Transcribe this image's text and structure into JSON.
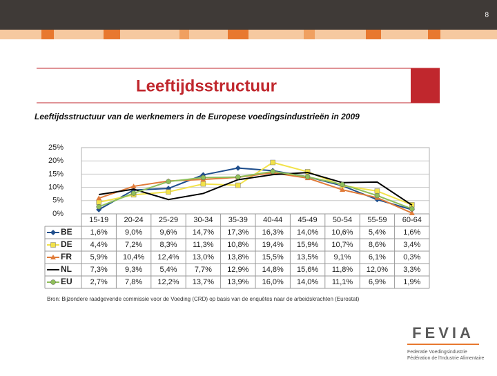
{
  "slide": {
    "page_number": "8",
    "title": "Leeftijdsstructuur",
    "source": "Bron: Bijzondere raadgevende commissie voor de Voeding (CRD) op basis van de enquêtes naar de arbeidskrachten (Eurostat)",
    "logo": "FEVIA",
    "logo_line1": "Federatie Voedingsindustrie",
    "logo_line2": "Fédération de l'Industrie Alimentaire"
  },
  "chart_data": {
    "type": "line",
    "title": "Leeftijdsstructuur van de werknemers in de Europese voedingsindustrieën in 2009",
    "categories": [
      "15-19",
      "20-24",
      "25-29",
      "30-34",
      "35-39",
      "40-44",
      "45-49",
      "50-54",
      "55-59",
      "60-64"
    ],
    "ylim": [
      0,
      25
    ],
    "yticks": [
      {
        "value": 0,
        "label": "0%"
      },
      {
        "value": 5,
        "label": "5%"
      },
      {
        "value": 10,
        "label": "10%"
      },
      {
        "value": 15,
        "label": "15%"
      },
      {
        "value": 20,
        "label": "20%"
      },
      {
        "value": 25,
        "label": "25%"
      }
    ],
    "grid": true,
    "series": [
      {
        "name": "BE",
        "color": "#1f4e8c",
        "marker": "diamond",
        "values": [
          1.6,
          9.0,
          9.6,
          14.7,
          17.3,
          16.3,
          14.0,
          10.6,
          5.4,
          1.6
        ],
        "value_labels": [
          "1,6%",
          "9,0%",
          "9,6%",
          "14,7%",
          "17,3%",
          "16,3%",
          "14,0%",
          "10,6%",
          "5,4%",
          "1,6%"
        ]
      },
      {
        "name": "DE",
        "color": "#f2e24a",
        "marker": "square",
        "values": [
          4.4,
          7.2,
          8.3,
          11.3,
          10.8,
          19.4,
          15.9,
          10.7,
          8.6,
          3.4
        ],
        "value_labels": [
          "4,4%",
          "7,2%",
          "8,3%",
          "11,3%",
          "10,8%",
          "19,4%",
          "15,9%",
          "10,7%",
          "8,6%",
          "3,4%"
        ]
      },
      {
        "name": "FR",
        "color": "#e07b39",
        "marker": "triangle",
        "values": [
          5.9,
          10.4,
          12.4,
          13.0,
          13.8,
          15.5,
          13.5,
          9.1,
          6.1,
          0.3
        ],
        "value_labels": [
          "5,9%",
          "10,4%",
          "12,4%",
          "13,0%",
          "13,8%",
          "15,5%",
          "13,5%",
          "9,1%",
          "6,1%",
          "0,3%"
        ]
      },
      {
        "name": "NL",
        "color": "#000000",
        "marker": "none",
        "values": [
          7.3,
          9.3,
          5.4,
          7.7,
          12.9,
          14.8,
          15.6,
          11.8,
          12.0,
          3.3
        ],
        "value_labels": [
          "7,3%",
          "9,3%",
          "5,4%",
          "7,7%",
          "12,9%",
          "14,8%",
          "15,6%",
          "11,8%",
          "12,0%",
          "3,3%"
        ]
      },
      {
        "name": "EU",
        "color": "#8fbf5a",
        "marker": "circle",
        "values": [
          2.7,
          7.8,
          12.2,
          13.7,
          13.9,
          16.0,
          14.0,
          11.1,
          6.9,
          1.9
        ],
        "value_labels": [
          "2,7%",
          "7,8%",
          "12,2%",
          "13,7%",
          "13,9%",
          "16,0%",
          "14,0%",
          "11,1%",
          "6,9%",
          "1,9%"
        ]
      }
    ]
  }
}
